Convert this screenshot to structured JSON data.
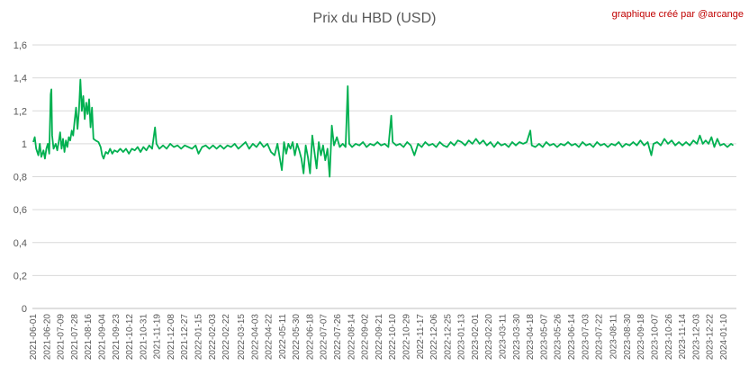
{
  "title": "Prix du HBD (USD)",
  "credit": "graphique créé par @arcange",
  "colors": {
    "line": "#00b050",
    "grid": "#d9d9d9",
    "text": "#595959",
    "credit": "#c00000"
  },
  "chart_data": {
    "type": "line",
    "title": "Prix du HBD (USD)",
    "xlabel": "",
    "ylabel": "",
    "ylim": [
      0,
      1.6
    ],
    "yticks": [
      "0",
      "0,2",
      "0,4",
      "0,6",
      "0,8",
      "1",
      "1,2",
      "1,4",
      "1,6"
    ],
    "grid": true,
    "legend": "none",
    "x_tick_labels": [
      "2021-06-01",
      "2021-06-20",
      "2021-07-09",
      "2021-07-28",
      "2021-08-16",
      "2021-09-04",
      "2021-09-23",
      "2021-10-12",
      "2021-10-31",
      "2021-11-19",
      "2021-12-08",
      "2021-12-27",
      "2022-01-15",
      "2022-02-03",
      "2022-02-22",
      "2022-03-15",
      "2022-04-03",
      "2022-04-22",
      "2022-05-11",
      "2022-05-30",
      "2022-06-18",
      "2022-07-07",
      "2022-07-26",
      "2022-08-14",
      "2022-09-02",
      "2022-09-21",
      "2022-10-10",
      "2022-10-29",
      "2022-11-17",
      "2022-12-06",
      "2022-12-25",
      "2023-01-13",
      "2023-02-01",
      "2023-02-20",
      "2023-03-11",
      "2023-03-30",
      "2023-04-18",
      "2023-05-07",
      "2023-05-26",
      "2023-06-14",
      "2023-07-03",
      "2023-07-22",
      "2023-08-11",
      "2023-08-30",
      "2023-09-18",
      "2023-10-07",
      "2023-10-26",
      "2023-11-14",
      "2023-12-03",
      "2023-12-22",
      "2024-01-10"
    ],
    "series": [
      {
        "points": [
          [
            "2021-06-01",
            1.01
          ],
          [
            "2021-06-03",
            1.04
          ],
          [
            "2021-06-05",
            0.97
          ],
          [
            "2021-06-08",
            0.93
          ],
          [
            "2021-06-10",
            1.0
          ],
          [
            "2021-06-12",
            0.92
          ],
          [
            "2021-06-15",
            0.96
          ],
          [
            "2021-06-17",
            0.91
          ],
          [
            "2021-06-19",
            0.97
          ],
          [
            "2021-06-21",
            1.0
          ],
          [
            "2021-06-23",
            0.94
          ],
          [
            "2021-06-25",
            1.3
          ],
          [
            "2021-06-26",
            1.33
          ],
          [
            "2021-06-27",
            1.05
          ],
          [
            "2021-06-29",
            0.97
          ],
          [
            "2021-07-02",
            1.0
          ],
          [
            "2021-07-04",
            0.96
          ],
          [
            "2021-07-06",
            1.01
          ],
          [
            "2021-07-08",
            1.07
          ],
          [
            "2021-07-10",
            0.97
          ],
          [
            "2021-07-12",
            1.03
          ],
          [
            "2021-07-14",
            0.95
          ],
          [
            "2021-07-16",
            1.02
          ],
          [
            "2021-07-18",
            0.98
          ],
          [
            "2021-07-20",
            1.04
          ],
          [
            "2021-07-22",
            1.02
          ],
          [
            "2021-07-24",
            1.08
          ],
          [
            "2021-07-26",
            1.05
          ],
          [
            "2021-07-28",
            1.14
          ],
          [
            "2021-07-30",
            1.22
          ],
          [
            "2021-08-01",
            1.09
          ],
          [
            "2021-08-03",
            1.2
          ],
          [
            "2021-08-05",
            1.39
          ],
          [
            "2021-08-07",
            1.2
          ],
          [
            "2021-08-09",
            1.29
          ],
          [
            "2021-08-11",
            1.15
          ],
          [
            "2021-08-13",
            1.25
          ],
          [
            "2021-08-15",
            1.18
          ],
          [
            "2021-08-17",
            1.27
          ],
          [
            "2021-08-19",
            1.1
          ],
          [
            "2021-08-21",
            1.22
          ],
          [
            "2021-08-23",
            1.03
          ],
          [
            "2021-08-26",
            1.02
          ],
          [
            "2021-08-30",
            1.01
          ],
          [
            "2021-09-02",
            0.98
          ],
          [
            "2021-09-04",
            0.93
          ],
          [
            "2021-09-06",
            0.91
          ],
          [
            "2021-09-09",
            0.95
          ],
          [
            "2021-09-12",
            0.94
          ],
          [
            "2021-09-15",
            0.97
          ],
          [
            "2021-09-18",
            0.94
          ],
          [
            "2021-09-21",
            0.96
          ],
          [
            "2021-09-25",
            0.95
          ],
          [
            "2021-09-29",
            0.97
          ],
          [
            "2021-10-03",
            0.95
          ],
          [
            "2021-10-07",
            0.97
          ],
          [
            "2021-10-11",
            0.94
          ],
          [
            "2021-10-15",
            0.97
          ],
          [
            "2021-10-19",
            0.96
          ],
          [
            "2021-10-23",
            0.98
          ],
          [
            "2021-10-27",
            0.95
          ],
          [
            "2021-10-31",
            0.98
          ],
          [
            "2021-11-04",
            0.96
          ],
          [
            "2021-11-08",
            0.99
          ],
          [
            "2021-11-12",
            0.97
          ],
          [
            "2021-11-16",
            1.1
          ],
          [
            "2021-11-18",
            1.0
          ],
          [
            "2021-11-22",
            0.97
          ],
          [
            "2021-11-27",
            0.99
          ],
          [
            "2021-12-02",
            0.97
          ],
          [
            "2021-12-07",
            1.0
          ],
          [
            "2021-12-12",
            0.98
          ],
          [
            "2021-12-17",
            0.99
          ],
          [
            "2021-12-22",
            0.97
          ],
          [
            "2021-12-27",
            0.99
          ],
          [
            "2022-01-01",
            0.98
          ],
          [
            "2022-01-06",
            0.97
          ],
          [
            "2022-01-11",
            0.99
          ],
          [
            "2022-01-15",
            0.94
          ],
          [
            "2022-01-20",
            0.98
          ],
          [
            "2022-01-25",
            0.99
          ],
          [
            "2022-01-30",
            0.97
          ],
          [
            "2022-02-04",
            0.99
          ],
          [
            "2022-02-09",
            0.97
          ],
          [
            "2022-02-14",
            0.99
          ],
          [
            "2022-02-19",
            0.97
          ],
          [
            "2022-02-24",
            0.99
          ],
          [
            "2022-03-01",
            0.98
          ],
          [
            "2022-03-06",
            1.0
          ],
          [
            "2022-03-11",
            0.97
          ],
          [
            "2022-03-16",
            0.99
          ],
          [
            "2022-03-21",
            1.01
          ],
          [
            "2022-03-26",
            0.97
          ],
          [
            "2022-03-31",
            1.0
          ],
          [
            "2022-04-05",
            0.98
          ],
          [
            "2022-04-10",
            1.01
          ],
          [
            "2022-04-15",
            0.98
          ],
          [
            "2022-04-20",
            1.0
          ],
          [
            "2022-04-25",
            0.95
          ],
          [
            "2022-04-30",
            0.93
          ],
          [
            "2022-05-04",
            1.0
          ],
          [
            "2022-05-07",
            0.92
          ],
          [
            "2022-05-10",
            0.84
          ],
          [
            "2022-05-13",
            1.01
          ],
          [
            "2022-05-16",
            0.94
          ],
          [
            "2022-05-19",
            1.0
          ],
          [
            "2022-05-22",
            0.97
          ],
          [
            "2022-05-25",
            1.01
          ],
          [
            "2022-05-28",
            0.93
          ],
          [
            "2022-05-31",
            1.0
          ],
          [
            "2022-06-03",
            0.96
          ],
          [
            "2022-06-06",
            0.91
          ],
          [
            "2022-06-09",
            0.82
          ],
          [
            "2022-06-12",
            0.99
          ],
          [
            "2022-06-15",
            0.92
          ],
          [
            "2022-06-18",
            0.82
          ],
          [
            "2022-06-21",
            1.05
          ],
          [
            "2022-06-24",
            0.95
          ],
          [
            "2022-06-27",
            0.85
          ],
          [
            "2022-06-30",
            1.01
          ],
          [
            "2022-07-03",
            0.93
          ],
          [
            "2022-07-06",
            0.99
          ],
          [
            "2022-07-09",
            0.9
          ],
          [
            "2022-07-12",
            0.97
          ],
          [
            "2022-07-15",
            0.8
          ],
          [
            "2022-07-18",
            1.11
          ],
          [
            "2022-07-21",
            0.99
          ],
          [
            "2022-07-25",
            1.04
          ],
          [
            "2022-07-29",
            0.98
          ],
          [
            "2022-08-02",
            1.0
          ],
          [
            "2022-08-06",
            0.98
          ],
          [
            "2022-08-09",
            1.35
          ],
          [
            "2022-08-11",
            1.0
          ],
          [
            "2022-08-15",
            0.98
          ],
          [
            "2022-08-20",
            1.0
          ],
          [
            "2022-08-25",
            0.99
          ],
          [
            "2022-08-30",
            1.01
          ],
          [
            "2022-09-04",
            0.98
          ],
          [
            "2022-09-09",
            1.0
          ],
          [
            "2022-09-14",
            0.99
          ],
          [
            "2022-09-19",
            1.01
          ],
          [
            "2022-09-24",
            0.99
          ],
          [
            "2022-09-29",
            1.0
          ],
          [
            "2022-10-04",
            0.98
          ],
          [
            "2022-10-08",
            1.17
          ],
          [
            "2022-10-10",
            1.01
          ],
          [
            "2022-10-15",
            0.99
          ],
          [
            "2022-10-20",
            1.0
          ],
          [
            "2022-10-25",
            0.98
          ],
          [
            "2022-10-30",
            1.01
          ],
          [
            "2022-11-04",
            0.99
          ],
          [
            "2022-11-09",
            0.93
          ],
          [
            "2022-11-14",
            1.0
          ],
          [
            "2022-11-19",
            0.98
          ],
          [
            "2022-11-24",
            1.01
          ],
          [
            "2022-11-29",
            0.99
          ],
          [
            "2022-12-04",
            1.0
          ],
          [
            "2022-12-09",
            0.98
          ],
          [
            "2022-12-14",
            1.01
          ],
          [
            "2022-12-19",
            0.99
          ],
          [
            "2022-12-24",
            0.98
          ],
          [
            "2022-12-29",
            1.01
          ],
          [
            "2023-01-03",
            0.99
          ],
          [
            "2023-01-08",
            1.02
          ],
          [
            "2023-01-13",
            1.01
          ],
          [
            "2023-01-18",
            0.99
          ],
          [
            "2023-01-23",
            1.02
          ],
          [
            "2023-01-28",
            1.0
          ],
          [
            "2023-02-02",
            1.03
          ],
          [
            "2023-02-07",
            1.0
          ],
          [
            "2023-02-12",
            1.02
          ],
          [
            "2023-02-17",
            0.99
          ],
          [
            "2023-02-22",
            1.01
          ],
          [
            "2023-02-27",
            0.98
          ],
          [
            "2023-03-04",
            1.01
          ],
          [
            "2023-03-09",
            0.99
          ],
          [
            "2023-03-14",
            1.0
          ],
          [
            "2023-03-19",
            0.98
          ],
          [
            "2023-03-24",
            1.01
          ],
          [
            "2023-03-29",
            0.99
          ],
          [
            "2023-04-03",
            1.01
          ],
          [
            "2023-04-08",
            1.0
          ],
          [
            "2023-04-13",
            1.01
          ],
          [
            "2023-04-18",
            1.08
          ],
          [
            "2023-04-20",
            0.99
          ],
          [
            "2023-04-25",
            0.98
          ],
          [
            "2023-04-30",
            1.0
          ],
          [
            "2023-05-05",
            0.98
          ],
          [
            "2023-05-10",
            1.01
          ],
          [
            "2023-05-15",
            0.99
          ],
          [
            "2023-05-20",
            1.0
          ],
          [
            "2023-05-25",
            0.98
          ],
          [
            "2023-05-30",
            1.0
          ],
          [
            "2023-06-04",
            0.99
          ],
          [
            "2023-06-09",
            1.01
          ],
          [
            "2023-06-14",
            0.99
          ],
          [
            "2023-06-19",
            1.0
          ],
          [
            "2023-06-24",
            0.98
          ],
          [
            "2023-06-29",
            1.01
          ],
          [
            "2023-07-04",
            0.99
          ],
          [
            "2023-07-09",
            1.0
          ],
          [
            "2023-07-14",
            0.98
          ],
          [
            "2023-07-19",
            1.01
          ],
          [
            "2023-07-24",
            0.99
          ],
          [
            "2023-07-29",
            1.0
          ],
          [
            "2023-08-03",
            0.98
          ],
          [
            "2023-08-08",
            1.0
          ],
          [
            "2023-08-13",
            0.99
          ],
          [
            "2023-08-18",
            1.01
          ],
          [
            "2023-08-23",
            0.98
          ],
          [
            "2023-08-28",
            1.0
          ],
          [
            "2023-09-02",
            0.99
          ],
          [
            "2023-09-07",
            1.01
          ],
          [
            "2023-09-12",
            0.99
          ],
          [
            "2023-09-17",
            1.02
          ],
          [
            "2023-09-22",
            0.99
          ],
          [
            "2023-09-27",
            1.01
          ],
          [
            "2023-10-02",
            0.93
          ],
          [
            "2023-10-05",
            1.0
          ],
          [
            "2023-10-10",
            1.01
          ],
          [
            "2023-10-15",
            0.99
          ],
          [
            "2023-10-20",
            1.03
          ],
          [
            "2023-10-25",
            1.0
          ],
          [
            "2023-10-30",
            1.02
          ],
          [
            "2023-11-04",
            0.99
          ],
          [
            "2023-11-09",
            1.01
          ],
          [
            "2023-11-14",
            0.99
          ],
          [
            "2023-11-19",
            1.01
          ],
          [
            "2023-11-24",
            0.99
          ],
          [
            "2023-11-29",
            1.02
          ],
          [
            "2023-12-04",
            1.0
          ],
          [
            "2023-12-08",
            1.05
          ],
          [
            "2023-12-12",
            1.0
          ],
          [
            "2023-12-16",
            1.02
          ],
          [
            "2023-12-20",
            1.0
          ],
          [
            "2023-12-24",
            1.04
          ],
          [
            "2023-12-28",
            0.98
          ],
          [
            "2024-01-01",
            1.03
          ],
          [
            "2024-01-05",
            0.99
          ],
          [
            "2024-01-10",
            1.0
          ],
          [
            "2024-01-15",
            0.98
          ],
          [
            "2024-01-20",
            1.0
          ],
          [
            "2024-01-23",
            0.99
          ]
        ]
      }
    ]
  }
}
